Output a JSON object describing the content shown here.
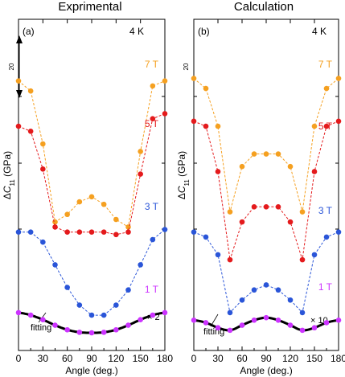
{
  "figure": {
    "ylabel_prefix": "Δ",
    "ylabel_var": "C",
    "ylabel_sub": "11",
    "ylabel_unit": " (GPa)",
    "xlabel": "Angle (deg.)",
    "temperature": "4 K",
    "scale_arrow_label": "20",
    "fit_label": "fitting"
  },
  "chart_data": [
    {
      "type": "line",
      "title": "Exprimental",
      "panel_letter": "(a)",
      "xlabel": "Angle (deg.)",
      "ylabel": "ΔC11 (GPa)",
      "xlim": [
        0,
        180
      ],
      "xticks": [
        0,
        30,
        60,
        90,
        120,
        150,
        180
      ],
      "ylim": [
        0,
        120
      ],
      "grid": false,
      "scale_note": "× 2",
      "series": [
        {
          "name": "7 T",
          "color": "#f5a020",
          "x": [
            0,
            15,
            30,
            45,
            60,
            75,
            90,
            105,
            120,
            135,
            150,
            165,
            180
          ],
          "y": [
            100,
            96,
            75,
            44,
            47,
            52,
            54,
            51,
            45,
            42,
            72,
            98,
            100
          ]
        },
        {
          "name": "5 T",
          "color": "#e41a1c",
          "x": [
            0,
            15,
            30,
            45,
            60,
            75,
            90,
            105,
            120,
            135,
            150,
            165,
            180
          ],
          "y": [
            82,
            80,
            65,
            42,
            40,
            40,
            40,
            40,
            39,
            40,
            63,
            85,
            87
          ]
        },
        {
          "name": "3 T",
          "color": "#2a55d8",
          "x": [
            0,
            15,
            30,
            45,
            60,
            75,
            90,
            105,
            120,
            135,
            150,
            165,
            180
          ],
          "y": [
            40,
            40,
            36,
            27,
            18,
            11,
            7,
            7,
            11,
            17,
            27,
            37,
            41
          ]
        },
        {
          "name": "1 T",
          "color": "#cc33ff",
          "x": [
            0,
            15,
            30,
            45,
            60,
            75,
            90,
            105,
            120,
            135,
            150,
            165,
            180
          ],
          "y": [
            8,
            7,
            5.2,
            3,
            1.2,
            0.2,
            0,
            0.2,
            1.2,
            3,
            5.2,
            7,
            8
          ]
        }
      ],
      "fit": {
        "name": "fitting",
        "color": "#000000",
        "series": "1 T"
      }
    },
    {
      "type": "line",
      "title": "Calculation",
      "panel_letter": "(b)",
      "xlabel": "Angle (deg.)",
      "ylabel": "ΔC11 (GPa)",
      "xlim": [
        0,
        180
      ],
      "xticks": [
        0,
        30,
        60,
        90,
        120,
        150,
        180
      ],
      "ylim": [
        0,
        120
      ],
      "grid": false,
      "scale_note": "× 10",
      "series": [
        {
          "name": "7 T",
          "color": "#f5a020",
          "x": [
            0,
            15,
            30,
            45,
            60,
            75,
            90,
            105,
            120,
            135,
            150,
            165,
            180
          ],
          "y": [
            101,
            97,
            82,
            48,
            66,
            71,
            71,
            71,
            66,
            48,
            82,
            97,
            101
          ]
        },
        {
          "name": "5 T",
          "color": "#e41a1c",
          "x": [
            0,
            15,
            30,
            45,
            60,
            75,
            90,
            105,
            120,
            135,
            150,
            165,
            180
          ],
          "y": [
            84,
            82,
            64,
            29,
            44,
            50,
            50,
            50,
            44,
            29,
            64,
            82,
            84
          ]
        },
        {
          "name": "3 T",
          "color": "#2a55d8",
          "x": [
            0,
            15,
            30,
            45,
            60,
            75,
            90,
            105,
            120,
            135,
            150,
            165,
            180
          ],
          "y": [
            40,
            38,
            31,
            8,
            13,
            17,
            19,
            17,
            13,
            8,
            31,
            38,
            40
          ]
        },
        {
          "name": "1 T",
          "color": "#cc33ff",
          "x": [
            0,
            15,
            30,
            45,
            60,
            75,
            90,
            105,
            120,
            135,
            150,
            165,
            180
          ],
          "y": [
            5,
            4,
            2,
            1,
            3,
            5,
            6,
            5,
            3,
            1,
            2,
            4,
            5
          ]
        }
      ],
      "fit": {
        "name": "fitting",
        "color": "#000000",
        "series": "1 T"
      }
    }
  ]
}
